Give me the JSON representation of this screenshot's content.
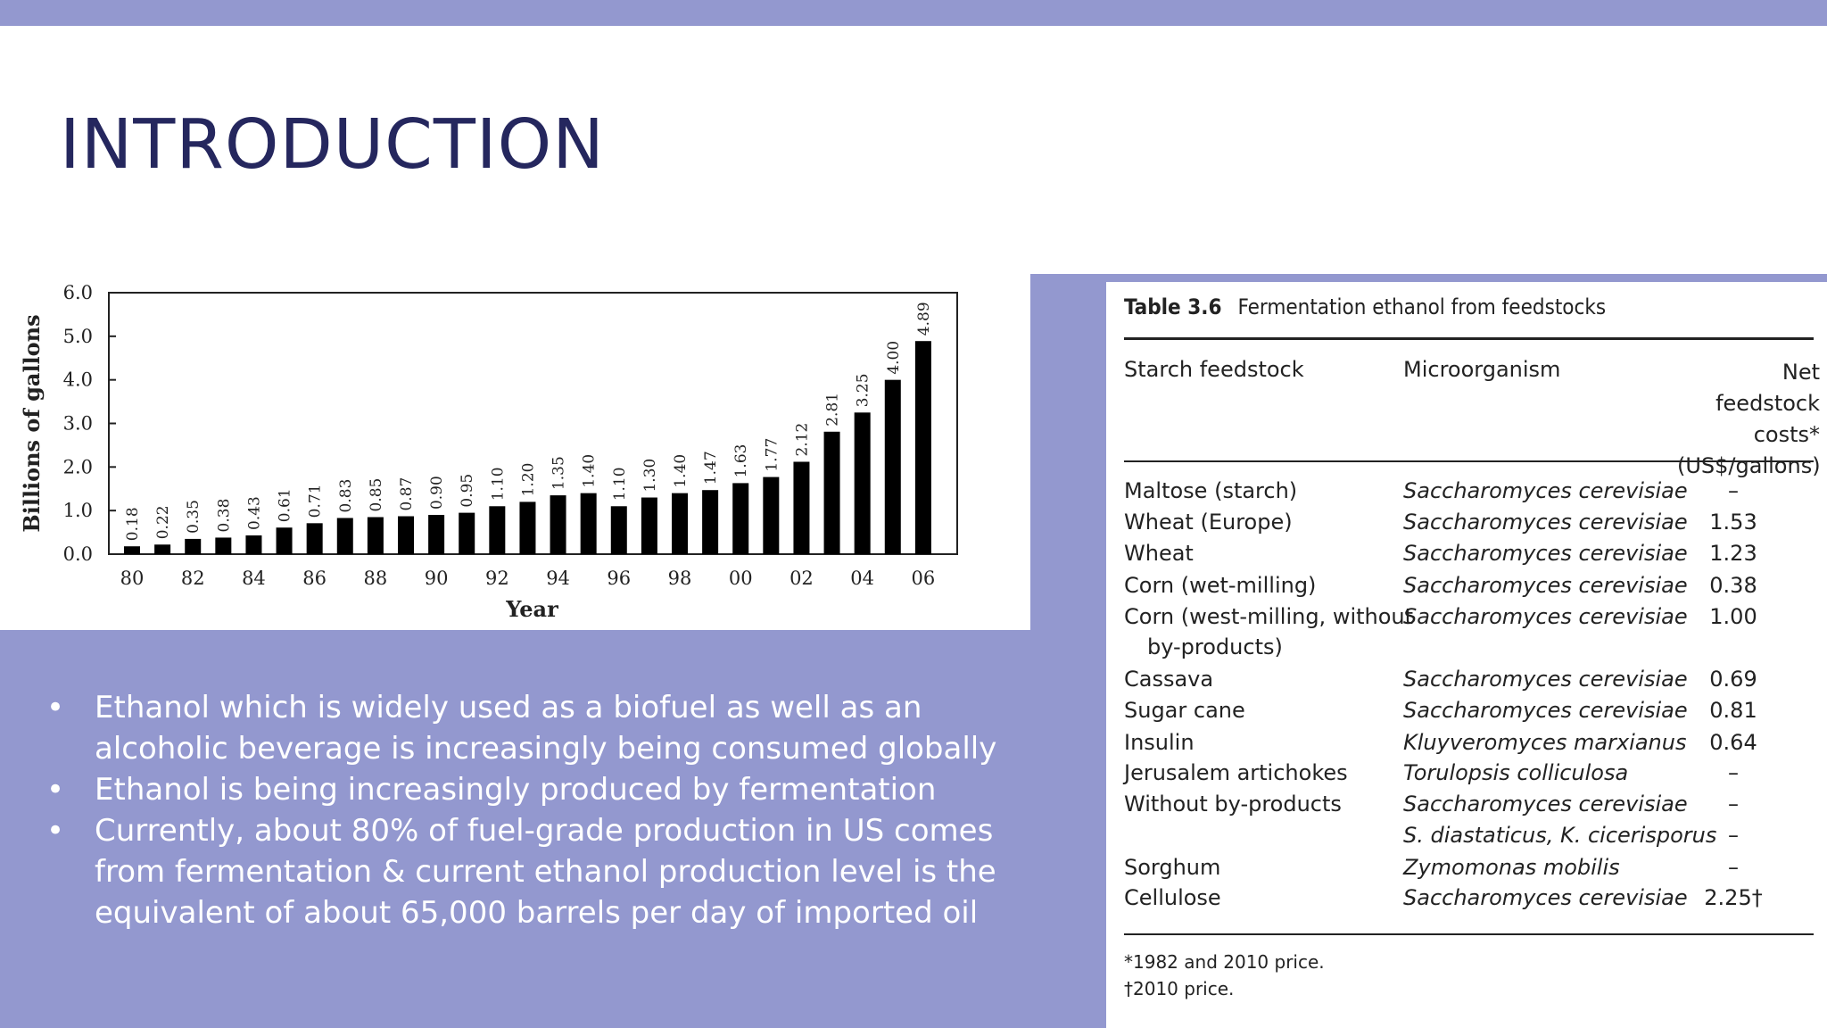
{
  "slide": {
    "title": "INTRODUCTION",
    "bullets": [
      "Ethanol which is widely used as a biofuel as well as an alcoholic beverage is increasingly being consumed globally",
      "Ethanol is being increasingly produced by fermentation",
      "Currently, about 80% of fuel-grade production in US comes from fermentation & current ethanol production level is the equivalent of about 65,000 barrels per day of imported oil"
    ],
    "colors": {
      "background": "#9398cf",
      "title": "#25275e",
      "bars": "#000000"
    }
  },
  "chart_data": {
    "type": "bar",
    "xlabel": "Year",
    "ylabel": "Billions of gallons",
    "ylim": [
      0,
      6
    ],
    "yticks": [
      "0.0",
      "1.0",
      "2.0",
      "3.0",
      "4.0",
      "5.0",
      "6.0"
    ],
    "xtick_labels": [
      "80",
      "82",
      "84",
      "86",
      "88",
      "90",
      "92",
      "94",
      "96",
      "98",
      "00",
      "02",
      "04",
      "06"
    ],
    "categories": [
      "80",
      "81",
      "82",
      "83",
      "84",
      "85",
      "86",
      "87",
      "88",
      "89",
      "90",
      "91",
      "92",
      "93",
      "94",
      "95",
      "96",
      "97",
      "98",
      "99",
      "00",
      "01",
      "02",
      "03",
      "04",
      "05",
      "06"
    ],
    "values": [
      0.18,
      0.22,
      0.35,
      0.38,
      0.43,
      0.61,
      0.71,
      0.83,
      0.85,
      0.87,
      0.9,
      0.95,
      1.1,
      1.2,
      1.35,
      1.4,
      1.1,
      1.3,
      1.4,
      1.47,
      1.63,
      1.77,
      2.12,
      2.81,
      3.25,
      4.0,
      4.89
    ],
    "data_labels": [
      "0.18",
      "0.22",
      "0.35",
      "0.38",
      "0.43",
      "0.61",
      "0.71",
      "0.83",
      "0.85",
      "0.87",
      "0.90",
      "0.95",
      "1.10",
      "1.20",
      "1.35",
      "1.40",
      "1.10",
      "1.30",
      "1.40",
      "1.47",
      "1.63",
      "1.77",
      "2.12",
      "2.81",
      "3.25",
      "4.00",
      "4.89"
    ]
  },
  "table": {
    "label": "Table 3.6",
    "caption": "Fermentation ethanol from feedstocks",
    "headers": {
      "feedstock": "Starch feedstock",
      "organism": "Microorganism",
      "cost_lines": [
        "Net feedstock",
        "costs*",
        "(US$/gallons)"
      ]
    },
    "rows": [
      {
        "feedstock": "Maltose (starch)",
        "organism": "Saccharomyces cerevisiae",
        "cost": "–"
      },
      {
        "feedstock": "Wheat (Europe)",
        "organism": "Saccharomyces cerevisiae",
        "cost": "1.53"
      },
      {
        "feedstock": "Wheat",
        "organism": "Saccharomyces cerevisiae",
        "cost": "1.23"
      },
      {
        "feedstock": "Corn (wet-milling)",
        "organism": "Saccharomyces cerevisiae",
        "cost": "0.38"
      },
      {
        "feedstock": "Corn (west-milling, without",
        "organism": "Saccharomyces cerevisiae",
        "cost": "1.00"
      },
      {
        "feedstock": "  by-products)",
        "organism": "",
        "cost": ""
      },
      {
        "feedstock": "Cassava",
        "organism": "Saccharomyces cerevisiae",
        "cost": "0.69"
      },
      {
        "feedstock": "Sugar cane",
        "organism": "Saccharomyces cerevisiae",
        "cost": "0.81"
      },
      {
        "feedstock": "Insulin",
        "organism": "Kluyveromyces marxianus",
        "cost": "0.64"
      },
      {
        "feedstock": "Jerusalem artichokes",
        "organism": "Torulopsis colliculosa",
        "cost": "–"
      },
      {
        "feedstock": "Without by-products",
        "organism": "Saccharomyces cerevisiae",
        "cost": "–"
      },
      {
        "feedstock": "",
        "organism": "S. diastaticus, K. cicerisporus",
        "cost": "–"
      },
      {
        "feedstock": "Sorghum",
        "organism": "Zymomonas mobilis",
        "cost": "–"
      },
      {
        "feedstock": "Cellulose",
        "organism": "Saccharomyces cerevisiae",
        "cost": "2.25†"
      }
    ],
    "footnotes": [
      "*1982 and 2010 price.",
      "†2010 price."
    ]
  }
}
